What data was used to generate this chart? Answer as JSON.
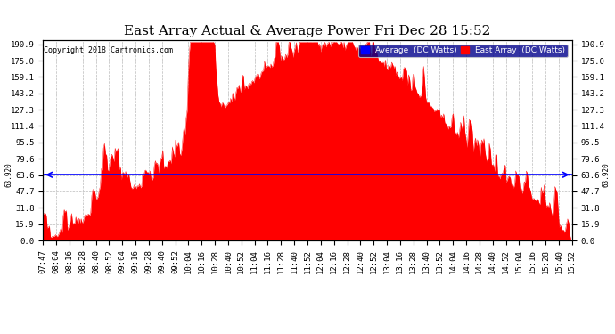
{
  "title": "East Array Actual & Average Power Fri Dec 28 15:52",
  "copyright": "Copyright 2018 Cartronics.com",
  "ylabel_avg": "63.920",
  "average_value": 63.92,
  "yticks": [
    0.0,
    15.9,
    31.8,
    47.7,
    63.6,
    79.6,
    95.5,
    111.4,
    127.3,
    143.2,
    159.1,
    175.0,
    190.9
  ],
  "ymax": 195.0,
  "ymin": 0.0,
  "legend_labels": [
    "Average  (DC Watts)",
    "East Array  (DC Watts)"
  ],
  "legend_colors": [
    "blue",
    "red"
  ],
  "bar_color": "#ff0000",
  "average_line_color": "blue",
  "background_color": "#ffffff",
  "grid_color": "#aaaaaa",
  "title_fontsize": 11,
  "tick_fontsize": 6.5,
  "xlabel_rotation": 90,
  "xtick_labels": [
    "07:47",
    "08:04",
    "08:16",
    "08:28",
    "08:40",
    "08:52",
    "09:04",
    "09:16",
    "09:28",
    "09:40",
    "09:52",
    "10:04",
    "10:16",
    "10:28",
    "10:40",
    "10:52",
    "11:04",
    "11:16",
    "11:28",
    "11:40",
    "11:52",
    "12:04",
    "12:16",
    "12:28",
    "12:40",
    "12:52",
    "13:04",
    "13:16",
    "13:28",
    "13:40",
    "13:52",
    "14:04",
    "14:16",
    "14:28",
    "14:40",
    "14:52",
    "15:04",
    "15:16",
    "15:28",
    "15:40",
    "15:52"
  ]
}
